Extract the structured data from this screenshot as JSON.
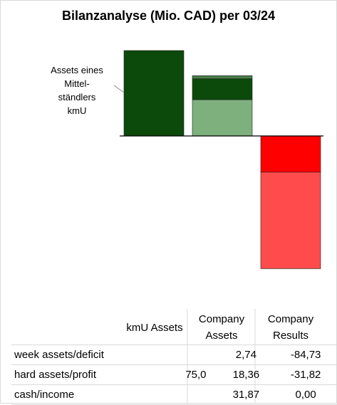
{
  "title": "Bilanzanalyse  (Mio. CAD) per 03/24",
  "annotation": "Assets eines Mittel-ständlers kmU",
  "table": {
    "headers": [
      "kmU Assets",
      "Company Assets",
      "Company Results"
    ],
    "rows": [
      {
        "label": "week assets/deficit",
        "values": [
          "",
          "2,74",
          "-84,73"
        ]
      },
      {
        "label": "hard assets/profit",
        "values": [
          "75,0",
          "18,36",
          "-31,82"
        ]
      },
      {
        "label": "cash/income",
        "values": [
          "",
          "31,87",
          "0,00"
        ]
      }
    ]
  },
  "colors": {
    "kmu_assets": "#0b4a0b",
    "company_cash": "#7db07d",
    "company_hard": "#0b4a0b",
    "company_week": "#4b7d4b",
    "results_profit": "#ff0000",
    "results_deficit": "#ff4b4b"
  },
  "chart_data": {
    "type": "bar",
    "stacked": true,
    "title": "Bilanzanalyse  (Mio. CAD) per 03/24",
    "categories": [
      "kmU Assets",
      "Company Assets",
      "Company Results"
    ],
    "series": [
      {
        "name": "cash/income",
        "values": [
          0,
          31.87,
          0.0
        ]
      },
      {
        "name": "hard assets/profit",
        "values": [
          75.0,
          18.36,
          -31.82
        ]
      },
      {
        "name": "week assets/deficit",
        "values": [
          0,
          2.74,
          -84.73
        ]
      }
    ],
    "axis_visible": false,
    "grid": false
  }
}
